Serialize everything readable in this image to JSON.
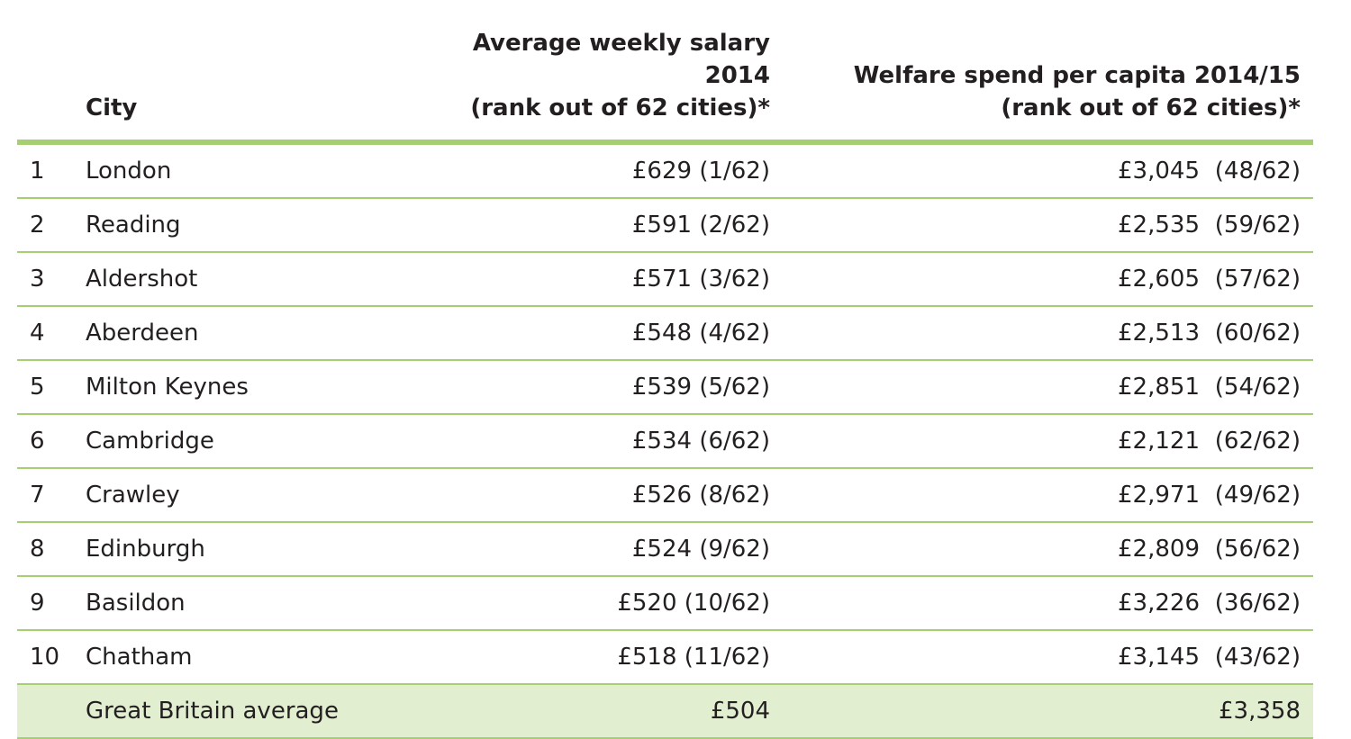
{
  "headers": {
    "rank": "",
    "city": "City",
    "salary_line1": "Average weekly salary 2014",
    "salary_line2": "(rank out of 62 cities)*",
    "welfare_line1": "Welfare spend per capita 2014/15",
    "welfare_line2": "(rank out of 62 cities)*"
  },
  "rows": [
    {
      "rank": "1",
      "city": "London",
      "salary": "£629",
      "salary_rank": "(1/62)",
      "welfare": "£3,045",
      "welfare_rank": "(48/62)"
    },
    {
      "rank": "2",
      "city": "Reading",
      "salary": "£591",
      "salary_rank": "(2/62)",
      "welfare": "£2,535",
      "welfare_rank": "(59/62)"
    },
    {
      "rank": "3",
      "city": "Aldershot",
      "salary": "£571",
      "salary_rank": "(3/62)",
      "welfare": "£2,605",
      "welfare_rank": "(57/62)"
    },
    {
      "rank": "4",
      "city": "Aberdeen",
      "salary": "£548",
      "salary_rank": "(4/62)",
      "welfare": "£2,513",
      "welfare_rank": "(60/62)"
    },
    {
      "rank": "5",
      "city": "Milton Keynes",
      "salary": "£539",
      "salary_rank": "(5/62)",
      "welfare": "£2,851",
      "welfare_rank": "(54/62)"
    },
    {
      "rank": "6",
      "city": "Cambridge",
      "salary": "£534",
      "salary_rank": "(6/62)",
      "welfare": "£2,121",
      "welfare_rank": "(62/62)"
    },
    {
      "rank": "7",
      "city": "Crawley",
      "salary": "£526",
      "salary_rank": "(8/62)",
      "welfare": "£2,971",
      "welfare_rank": "(49/62)"
    },
    {
      "rank": "8",
      "city": "Edinburgh",
      "salary": "£524",
      "salary_rank": "(9/62)",
      "welfare": "£2,809",
      "welfare_rank": "(56/62)"
    },
    {
      "rank": "9",
      "city": "Basildon",
      "salary": "£520",
      "salary_rank": "(10/62)",
      "welfare": "£3,226",
      "welfare_rank": "(36/62)"
    },
    {
      "rank": "10",
      "city": "Chatham",
      "salary": "£518",
      "salary_rank": "(11/62)",
      "welfare": "£3,145",
      "welfare_rank": "(43/62)"
    }
  ],
  "average": {
    "label": "Great Britain average",
    "salary": "£504",
    "welfare": "£3,358"
  },
  "colors": {
    "rule": "#a6cf72",
    "average_fill": "#e1eed0",
    "text": "#231f20"
  }
}
